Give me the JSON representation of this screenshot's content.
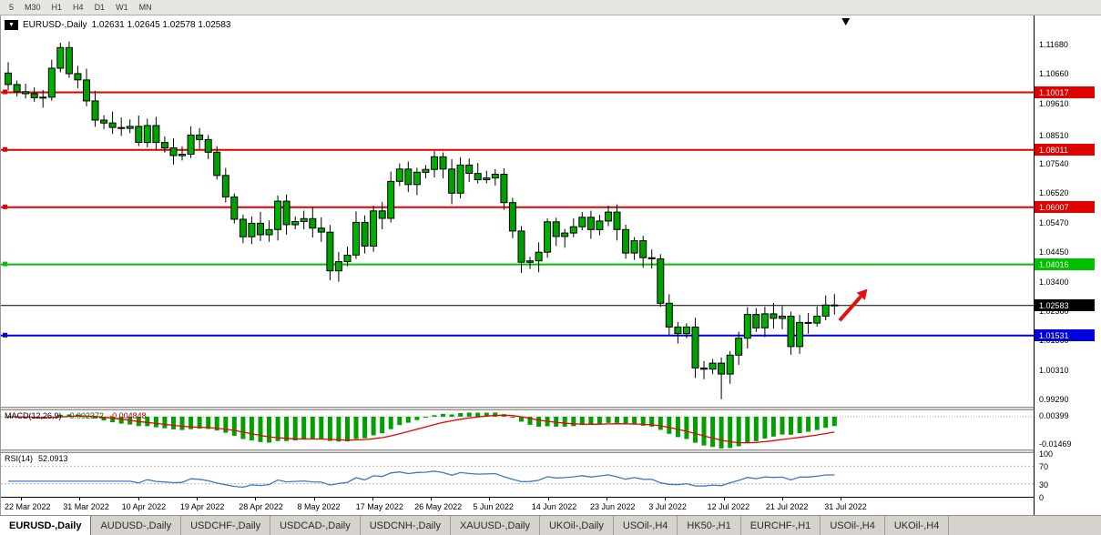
{
  "toolbar": {
    "timeframes": [
      "5",
      "M30",
      "H1",
      "H4",
      "D1",
      "W1",
      "MN"
    ]
  },
  "chart": {
    "title_symbol": "EURUSD-,Daily",
    "title_ohlc": "1.02631 1.02645 1.02578 1.02583"
  },
  "macd": {
    "name": "MACD(12,26,9)",
    "value1": "-0.002372",
    "value2": "-0.004848",
    "axis_max_label": "0.00399",
    "axis_min_label": "-0.01469"
  },
  "rsi": {
    "name": "RSI(14)",
    "value": "52.0913",
    "axis_labels": [
      "100",
      "70",
      "30",
      "0"
    ],
    "levels": [
      70,
      30
    ]
  },
  "colors": {
    "candle_up": "#00b000",
    "candle_down": "#009f00",
    "wick": "#000000",
    "macd_hist": "#00a000",
    "macd_signal": "#ee0000",
    "rsi_line": "#3c78c8",
    "arrow": "#e01010"
  },
  "tabs": {
    "active_index": 0,
    "items": [
      "EURUSD-,Daily",
      "AUDUSD-,Daily",
      "USDCHF-,Daily",
      "USDCAD-,Daily",
      "USDCNH-,Daily",
      "XAUUSD-,Daily",
      "UKOil-,Daily",
      "USOil-,H4",
      "HK50-,H1",
      "EURCHF-,H1",
      "USOil-,H4",
      "UKOil-,H4"
    ]
  },
  "chart_data": {
    "type": "candlestick",
    "symbol": "EURUSD-",
    "timeframe": "Daily",
    "ylim": [
      0.9905,
      1.127
    ],
    "price_axis_ticks": [
      "1.11680",
      "1.10660",
      "1.09610",
      "1.08510",
      "1.07540",
      "1.06520",
      "1.05470",
      "1.04450",
      "1.03400",
      "1.02380",
      "1.01360",
      "1.00310",
      "0.99290"
    ],
    "x_tick_labels": [
      "22 Mar 2022",
      "31 Mar 2022",
      "10 Apr 2022",
      "19 Apr 2022",
      "28 Apr 2022",
      "8 May 2022",
      "17 May 2022",
      "26 May 2022",
      "5 Jun 2022",
      "14 Jun 2022",
      "23 Jun 2022",
      "3 Jul 2022",
      "12 Jul 2022",
      "21 Jul 2022",
      "31 Jul 2022"
    ],
    "closes": [
      1.1029,
      1.1004,
      1.0997,
      1.0983,
      1.0985,
      1.1086,
      1.1158,
      1.1067,
      1.1045,
      1.0972,
      1.0905,
      1.0895,
      1.0879,
      1.0876,
      1.0883,
      1.0827,
      1.0886,
      1.0827,
      1.0808,
      1.0781,
      1.0786,
      1.0853,
      1.0837,
      1.0793,
      1.0712,
      1.0637,
      1.0559,
      1.0498,
      1.0545,
      1.0505,
      1.0523,
      1.0622,
      1.054,
      1.0551,
      1.0561,
      1.0528,
      1.0514,
      1.0379,
      1.0411,
      1.0434,
      1.0548,
      1.0465,
      1.0588,
      1.0562,
      1.0691,
      1.0734,
      1.068,
      1.0723,
      1.0733,
      1.0777,
      1.0734,
      1.065,
      1.0748,
      1.0719,
      1.0697,
      1.0703,
      1.0716,
      1.0617,
      1.0518,
      1.0409,
      1.0414,
      1.0444,
      1.055,
      1.0499,
      1.0511,
      1.0533,
      1.0566,
      1.0523,
      1.0553,
      1.0584,
      1.0523,
      1.0441,
      1.0484,
      1.0425,
      1.0421,
      1.0266,
      1.0183,
      1.016,
      1.0183,
      1.004,
      1.0036,
      1.0057,
      1.0019,
      1.0085,
      1.0144,
      1.0227,
      1.018,
      1.0229,
      1.0213,
      1.0221,
      1.0115,
      1.0199,
      1.0197,
      1.0221,
      1.026,
      1.02583
    ],
    "hlines": [
      {
        "price": 1.10017,
        "label": "1.10017",
        "color": "#e00000",
        "text_color": "#ffffff",
        "width": 2,
        "handle": true,
        "name": "resistance-1"
      },
      {
        "price": 1.08011,
        "label": "1.08011",
        "color": "#e00000",
        "text_color": "#ffffff",
        "width": 2,
        "handle": true,
        "name": "resistance-2"
      },
      {
        "price": 1.06007,
        "label": "1.06007",
        "color": "#e00000",
        "text_color": "#ffffff",
        "width": 2,
        "handle": true,
        "name": "resistance-3"
      },
      {
        "price": 1.04016,
        "label": "1.04016",
        "color": "#00c000",
        "text_color": "#ffffff",
        "width": 2,
        "handle": true,
        "name": "support-green"
      },
      {
        "price": 1.02583,
        "label": "1.02583",
        "color": "#000000",
        "text_color": "#ffffff",
        "width": 1,
        "handle": false,
        "name": "current-price"
      },
      {
        "price": 1.01531,
        "label": "1.01531",
        "color": "#0000dd",
        "text_color": "#ffffff",
        "width": 2,
        "handle": true,
        "name": "support-blue"
      }
    ],
    "arrow": {
      "from_bar": 95.6,
      "from_price": 1.0206,
      "to_bar": 98.8,
      "to_price": 1.0316
    },
    "indicators": {
      "macd": {
        "fast": 12,
        "slow": 26,
        "signal": 9,
        "current_macd": -0.002372,
        "current_signal": -0.004848,
        "axis_max": 0.00399,
        "axis_min": -0.01469
      },
      "rsi": {
        "period": 14,
        "current": 52.0913,
        "levels": [
          70,
          30
        ],
        "axis": [
          100,
          70,
          30,
          0
        ]
      }
    }
  }
}
